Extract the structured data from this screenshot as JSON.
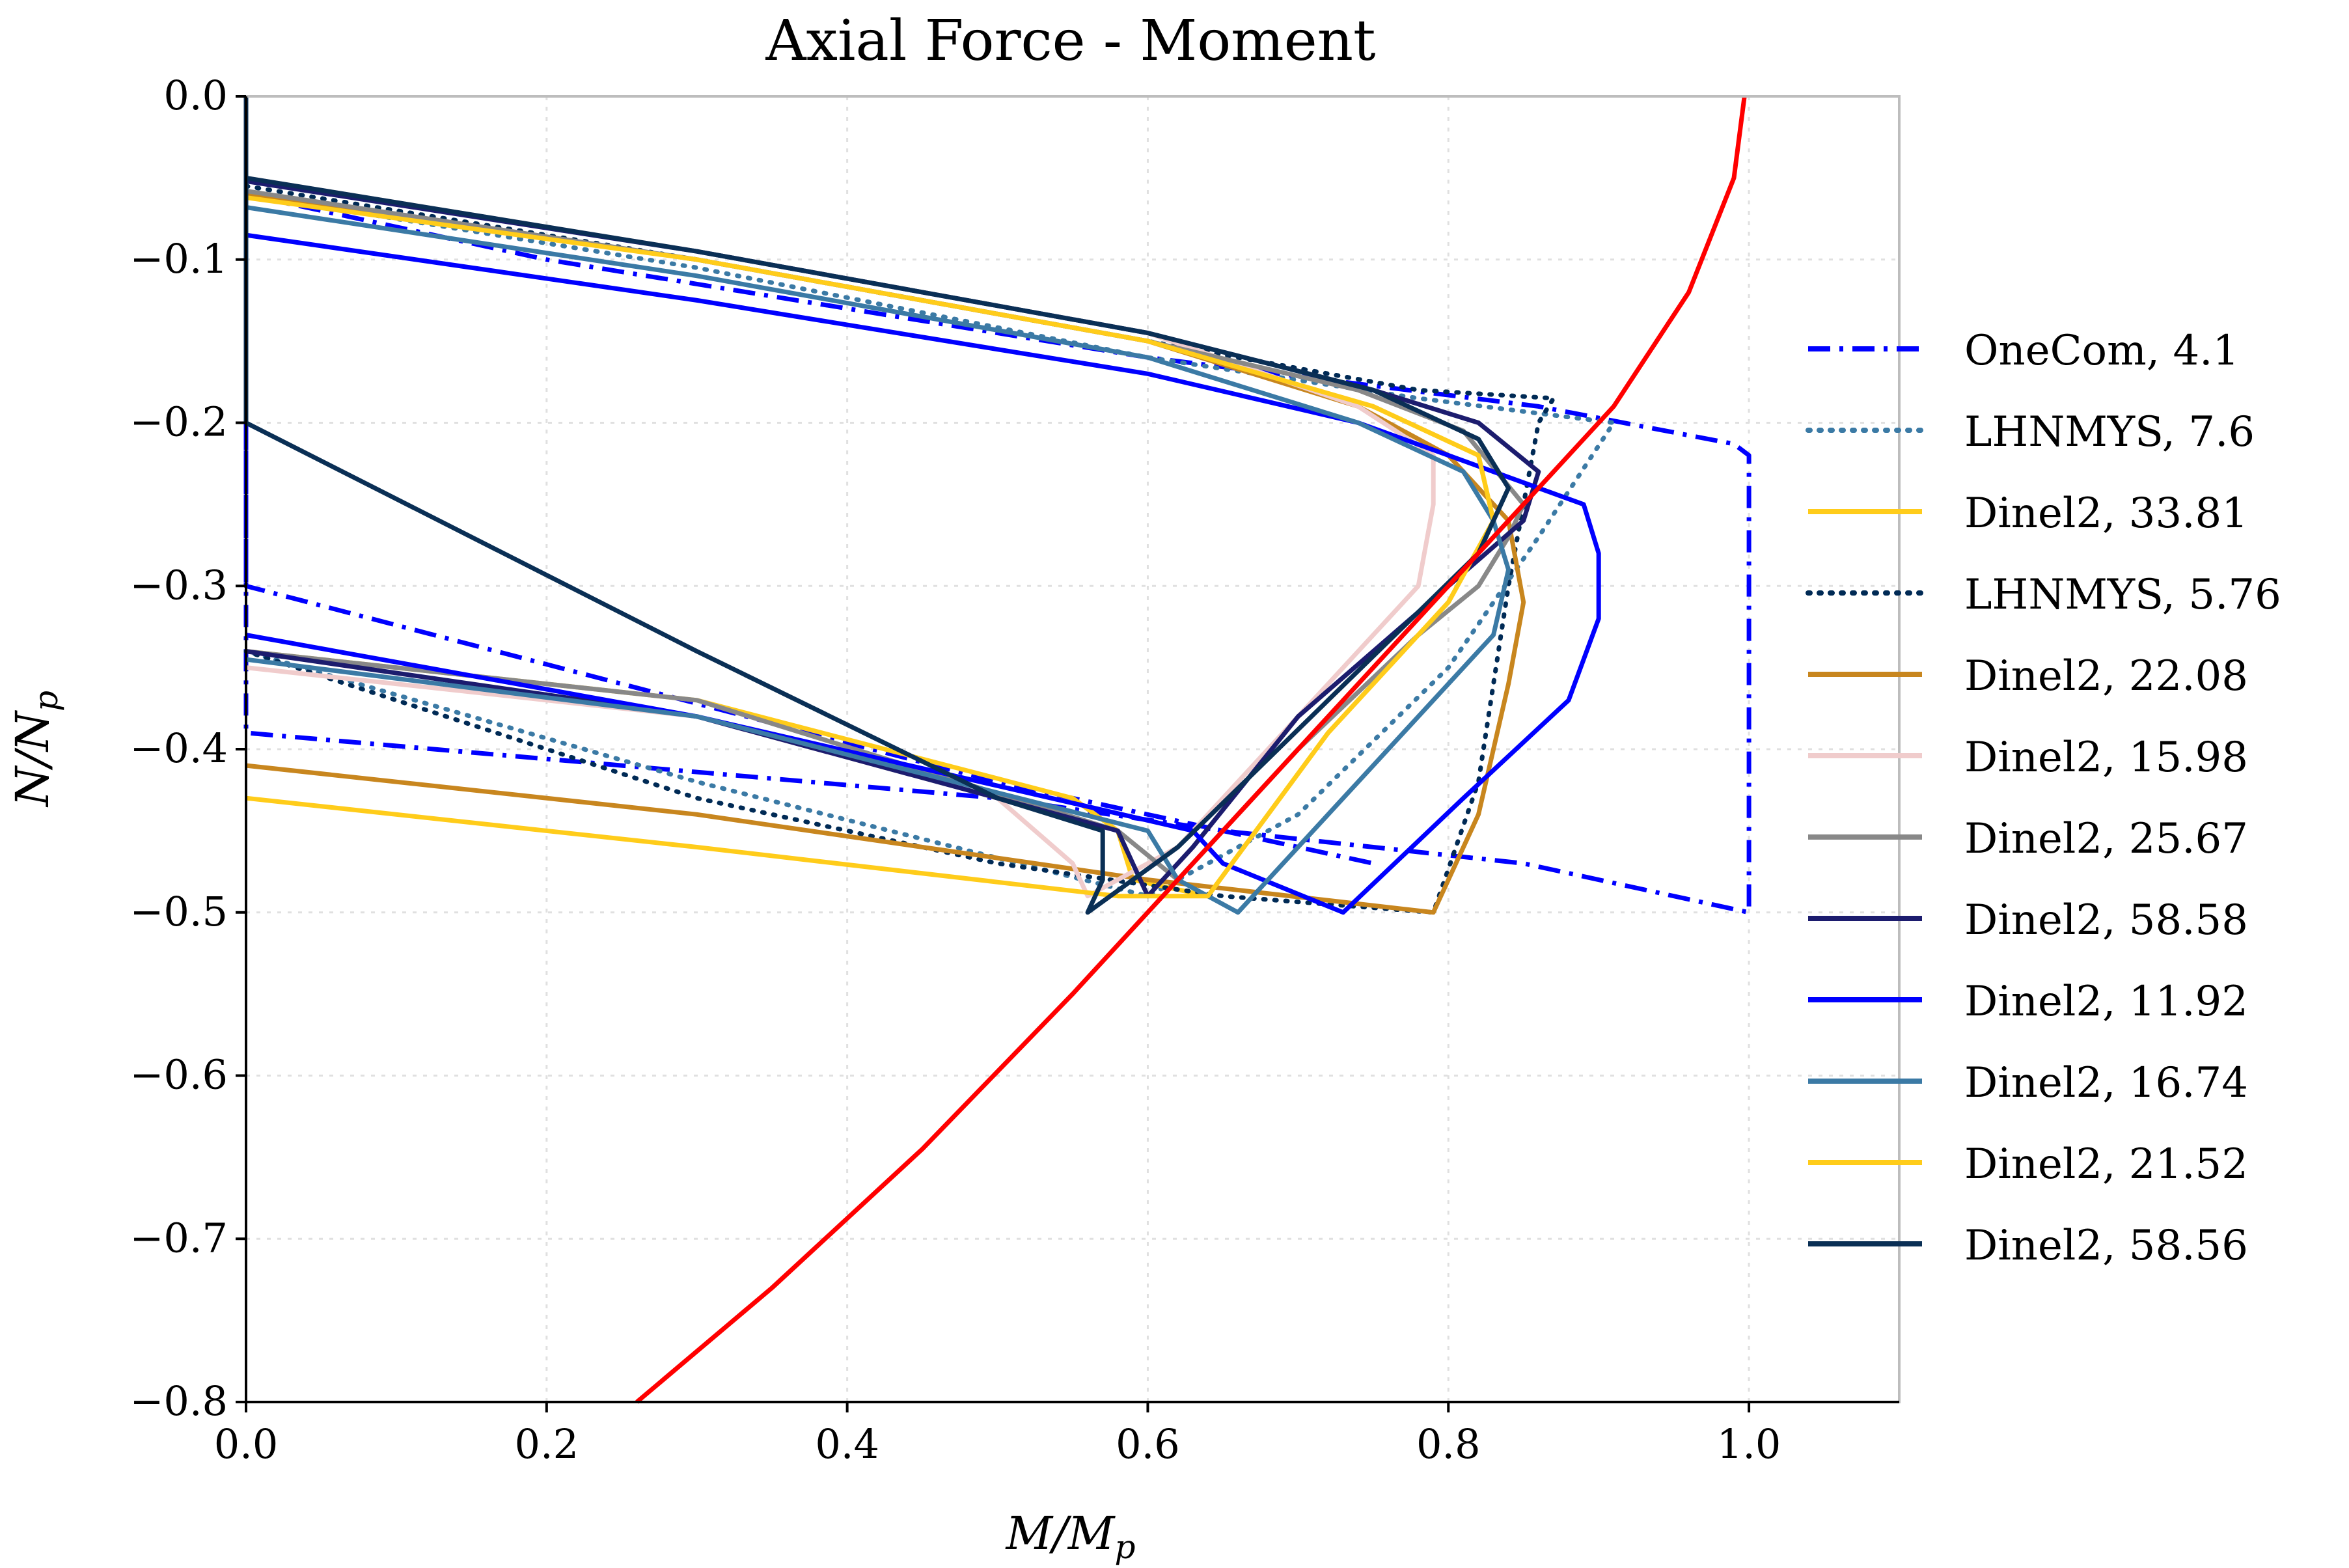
{
  "chart_data": {
    "type": "line",
    "title": "Axial Force - Moment",
    "xlabel": "M/M_p",
    "ylabel": "N/N_p",
    "xlim": [
      0,
      1.1
    ],
    "ylim": [
      -0.8,
      0.0
    ],
    "xticks": [
      "0.0",
      "0.2",
      "0.4",
      "0.6",
      "0.8",
      "1.0"
    ],
    "yticks": [
      "0.0",
      "−0.1",
      "−0.2",
      "−0.3",
      "−0.4",
      "−0.5",
      "−0.6",
      "−0.7",
      "−0.8"
    ],
    "grid": true,
    "legend_position": "right",
    "series": [
      {
        "name": "OneCom, 4.1",
        "color": "#0000ff",
        "style": "dashdot",
        "x": [
          0.0,
          0.0,
          0.0,
          0.5,
          0.65,
          0.85,
          1.0,
          1.0,
          1.0,
          0.99,
          0.86,
          0.6,
          0.4,
          0.2,
          0.0,
          0.0,
          0.25,
          0.5,
          0.65,
          0.75
        ],
        "y": [
          0.0,
          -0.15,
          -0.3,
          -0.42,
          -0.45,
          -0.47,
          -0.5,
          -0.35,
          -0.22,
          -0.213,
          -0.19,
          -0.16,
          -0.13,
          -0.1,
          -0.06,
          -0.39,
          -0.41,
          -0.43,
          -0.45,
          -0.47
        ]
      },
      {
        "name": "LHNMYS, 7.6",
        "color": "#3b7aa5",
        "style": "dotted",
        "x": [
          0.0,
          0.3,
          0.6,
          0.78,
          0.91,
          0.86,
          0.8,
          0.7,
          0.6,
          0.3,
          0.0
        ],
        "y": [
          -0.06,
          -0.105,
          -0.16,
          -0.185,
          -0.2,
          -0.27,
          -0.35,
          -0.44,
          -0.49,
          -0.42,
          -0.34
        ]
      },
      {
        "name": "Dinel2, 33.81",
        "color": "#ffcc1a",
        "style": "solid",
        "x": [
          0.0,
          0.3,
          0.6,
          0.75,
          0.82,
          0.83,
          0.8,
          0.72,
          0.64,
          0.59,
          0.58,
          0.55,
          0.3,
          0.0
        ],
        "y": [
          -0.06,
          -0.1,
          -0.15,
          -0.19,
          -0.22,
          -0.26,
          -0.31,
          -0.39,
          -0.49,
          -0.48,
          -0.45,
          -0.43,
          -0.37,
          -0.34
        ]
      },
      {
        "name": "LHNMYS, 5.76",
        "color": "#002a55",
        "style": "dotted",
        "x": [
          0.0,
          0.3,
          0.6,
          0.78,
          0.87,
          0.86,
          0.84,
          0.82,
          0.79,
          0.65,
          0.5,
          0.3,
          0.0
        ],
        "y": [
          -0.055,
          -0.1,
          -0.15,
          -0.18,
          -0.185,
          -0.2,
          -0.3,
          -0.42,
          -0.5,
          -0.49,
          -0.47,
          -0.43,
          -0.34
        ]
      },
      {
        "name": "Dinel2, 22.08",
        "color": "#c8861e",
        "style": "solid",
        "x": [
          0.0,
          0.3,
          0.6,
          0.74,
          0.8,
          0.84,
          0.85,
          0.84,
          0.82,
          0.79,
          0.6,
          0.3,
          0.0
        ],
        "y": [
          -0.06,
          -0.1,
          -0.15,
          -0.19,
          -0.22,
          -0.26,
          -0.31,
          -0.36,
          -0.44,
          -0.5,
          -0.48,
          -0.44,
          -0.41
        ]
      },
      {
        "name": "Dinel2, 15.98",
        "color": "#f0cccc",
        "style": "solid",
        "x": [
          0.0,
          0.3,
          0.6,
          0.74,
          0.79,
          0.79,
          0.78,
          0.7,
          0.62,
          0.56,
          0.55,
          0.5,
          0.3,
          0.0
        ],
        "y": [
          -0.05,
          -0.095,
          -0.145,
          -0.19,
          -0.22,
          -0.25,
          -0.3,
          -0.38,
          -0.46,
          -0.49,
          -0.47,
          -0.43,
          -0.38,
          -0.35
        ]
      },
      {
        "name": "Dinel2, 25.67",
        "color": "#888888",
        "style": "solid",
        "x": [
          0.0,
          0.3,
          0.6,
          0.74,
          0.81,
          0.85,
          0.84,
          0.82,
          0.78,
          0.7,
          0.65,
          0.62,
          0.58,
          0.3,
          0.0
        ],
        "y": [
          -0.058,
          -0.1,
          -0.15,
          -0.18,
          -0.205,
          -0.25,
          -0.27,
          -0.3,
          -0.33,
          -0.4,
          -0.45,
          -0.48,
          -0.45,
          -0.37,
          -0.34
        ]
      },
      {
        "name": "Dinel2, 58.58",
        "color": "#1c1c6e",
        "style": "solid",
        "x": [
          0.0,
          0.3,
          0.6,
          0.75,
          0.82,
          0.86,
          0.85,
          0.8,
          0.7,
          0.63,
          0.6,
          0.58,
          0.3,
          0.0
        ],
        "y": [
          -0.052,
          -0.095,
          -0.145,
          -0.18,
          -0.2,
          -0.23,
          -0.26,
          -0.3,
          -0.38,
          -0.46,
          -0.49,
          -0.45,
          -0.38,
          -0.34
        ]
      },
      {
        "name": "Dinel2, 11.92",
        "color": "#0000ff",
        "style": "solid",
        "x": [
          0.0,
          0.3,
          0.6,
          0.74,
          0.8,
          0.86,
          0.89,
          0.9,
          0.9,
          0.88,
          0.81,
          0.73,
          0.65,
          0.63,
          0.3,
          0.0
        ],
        "y": [
          -0.085,
          -0.125,
          -0.17,
          -0.2,
          -0.22,
          -0.24,
          -0.25,
          -0.28,
          -0.32,
          -0.37,
          -0.43,
          -0.5,
          -0.47,
          -0.45,
          -0.38,
          -0.33
        ]
      },
      {
        "name": "Dinel2, 16.74",
        "color": "#3b7aa5",
        "style": "solid",
        "x": [
          0.0,
          0.3,
          0.6,
          0.74,
          0.81,
          0.83,
          0.84,
          0.83,
          0.76,
          0.66,
          0.62,
          0.6,
          0.3,
          0.0
        ],
        "y": [
          -0.068,
          -0.11,
          -0.16,
          -0.2,
          -0.23,
          -0.26,
          -0.29,
          -0.33,
          -0.4,
          -0.5,
          -0.48,
          -0.45,
          -0.38,
          -0.345
        ]
      },
      {
        "name": "Dinel2, 21.52",
        "color": "#ffcc1a",
        "style": "solid",
        "x": [
          0.0,
          0.3,
          0.6,
          0.75,
          0.82,
          0.83,
          0.8,
          0.72,
          0.64,
          0.58,
          0.3,
          0.0
        ],
        "y": [
          -0.062,
          -0.1,
          -0.15,
          -0.19,
          -0.22,
          -0.26,
          -0.31,
          -0.39,
          -0.49,
          -0.49,
          -0.46,
          -0.43
        ]
      },
      {
        "name": "Dinel2, 58.56",
        "color": "#0a2f55",
        "style": "solid",
        "x": [
          0.0,
          0.3,
          0.6,
          0.75,
          0.82,
          0.84,
          0.82,
          0.72,
          0.62,
          0.56,
          0.57,
          0.57,
          0.5,
          0.3,
          0.0,
          0.0,
          0.0
        ],
        "y": [
          -0.05,
          -0.095,
          -0.145,
          -0.18,
          -0.21,
          -0.24,
          -0.28,
          -0.37,
          -0.46,
          -0.5,
          -0.48,
          -0.45,
          -0.43,
          -0.34,
          -0.2,
          -0.1,
          0.0
        ]
      },
      {
        "color": "#ff0000",
        "style": "solid",
        "width": 7,
        "x": [
          0.26,
          0.35,
          0.45,
          0.55,
          0.62,
          0.7,
          0.78,
          0.85,
          0.91,
          0.96,
          0.99,
          0.997
        ],
        "y": [
          -0.8,
          -0.73,
          -0.645,
          -0.55,
          -0.48,
          -0.4,
          -0.32,
          -0.25,
          -0.19,
          -0.12,
          -0.05,
          0.0
        ]
      }
    ]
  }
}
